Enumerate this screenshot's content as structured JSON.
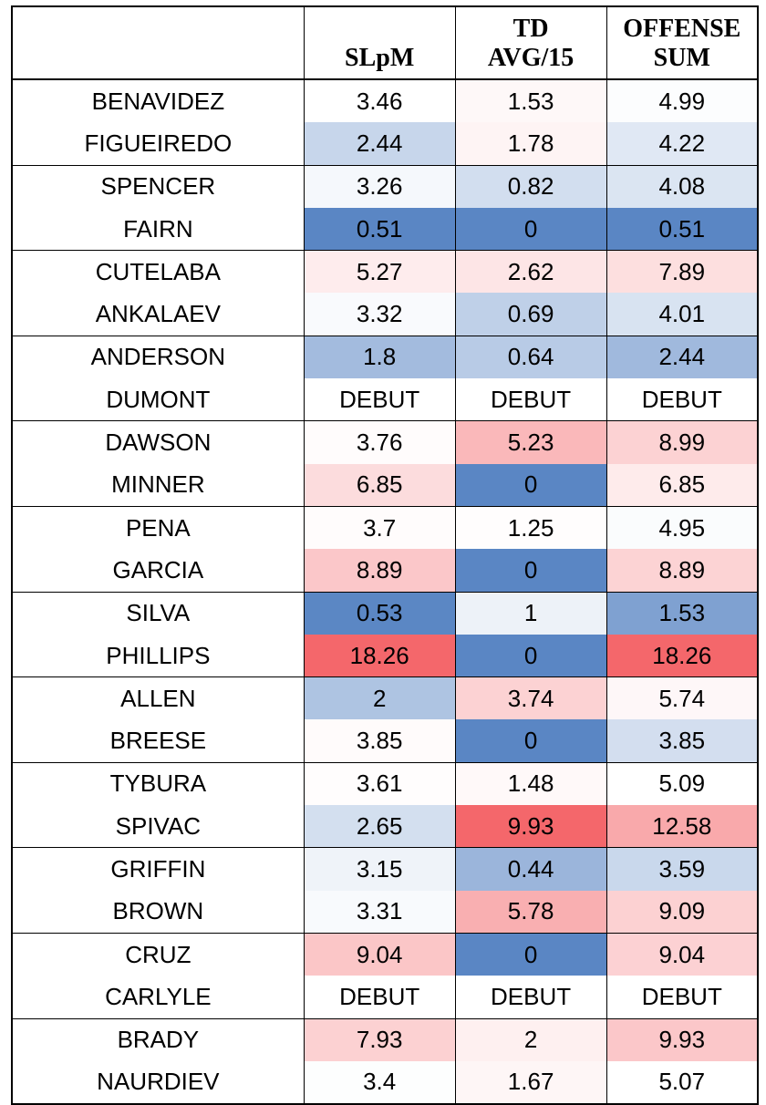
{
  "chart_data": {
    "type": "table",
    "columns": [
      "",
      "SLpM",
      "TD AVG/15",
      "OFFENSE SUM"
    ],
    "header_lines": [
      [
        ""
      ],
      [
        "SLpM"
      ],
      [
        "TD",
        "AVG/15"
      ],
      [
        "OFFENSE",
        "SUM"
      ]
    ],
    "rows": [
      [
        "BENAVIDEZ",
        "3.46",
        "1.53",
        "4.99"
      ],
      [
        "FIGUEIREDO",
        "2.44",
        "1.78",
        "4.22"
      ],
      [
        "SPENCER",
        "3.26",
        "0.82",
        "4.08"
      ],
      [
        "FAIRN",
        "0.51",
        "0",
        "0.51"
      ],
      [
        "CUTELABA",
        "5.27",
        "2.62",
        "7.89"
      ],
      [
        "ANKALAEV",
        "3.32",
        "0.69",
        "4.01"
      ],
      [
        "ANDERSON",
        "1.8",
        "0.64",
        "2.44"
      ],
      [
        "DUMONT",
        "DEBUT",
        "DEBUT",
        "DEBUT"
      ],
      [
        "DAWSON",
        "3.76",
        "5.23",
        "8.99"
      ],
      [
        "MINNER",
        "6.85",
        "0",
        "6.85"
      ],
      [
        "PENA",
        "3.7",
        "1.25",
        "4.95"
      ],
      [
        "GARCIA",
        "8.89",
        "0",
        "8.89"
      ],
      [
        "SILVA",
        "0.53",
        "1",
        "1.53"
      ],
      [
        "PHILLIPS",
        "18.26",
        "0",
        "18.26"
      ],
      [
        "ALLEN",
        "2",
        "3.74",
        "5.74"
      ],
      [
        "BREESE",
        "3.85",
        "0",
        "3.85"
      ],
      [
        "TYBURA",
        "3.61",
        "1.48",
        "5.09"
      ],
      [
        "SPIVAC",
        "2.65",
        "9.93",
        "12.58"
      ],
      [
        "GRIFFIN",
        "3.15",
        "0.44",
        "3.59"
      ],
      [
        "BROWN",
        "3.31",
        "5.78",
        "9.09"
      ],
      [
        "CRUZ",
        "9.04",
        "0",
        "9.04"
      ],
      [
        "CARLYLE",
        "DEBUT",
        "DEBUT",
        "DEBUT"
      ],
      [
        "BRADY",
        "7.93",
        "2",
        "9.93"
      ],
      [
        "NAURDIEV",
        "3.4",
        "1.67",
        "5.07"
      ]
    ],
    "color_scale": {
      "low": "#5a86c4",
      "mid": "#ffffff",
      "high": "#f4676b",
      "debut": "#ffffff"
    }
  }
}
